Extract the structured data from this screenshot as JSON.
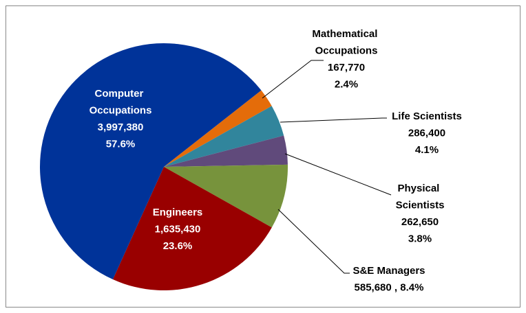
{
  "chart_data": {
    "type": "pie",
    "categories": [
      "Mathematical Occupations",
      "Life Scientists",
      "Physical Scientists",
      "S&E Managers",
      "Engineers",
      "Computer Occupations"
    ],
    "values": [
      167770,
      286400,
      262650,
      585680,
      1635430,
      3997380
    ],
    "value_labels": [
      "167,770",
      "286,400",
      "262,650",
      "585,680",
      "1,635,430",
      "3,997,380"
    ],
    "percent_labels": [
      "2.4%",
      "4.1%",
      "3.8%",
      "8.4%",
      "23.6%",
      "57.6%"
    ],
    "label_separator": " , ",
    "colors": [
      "#e46c0a",
      "#31859c",
      "#604a7b",
      "#77933c",
      "#990000",
      "#003399"
    ]
  }
}
